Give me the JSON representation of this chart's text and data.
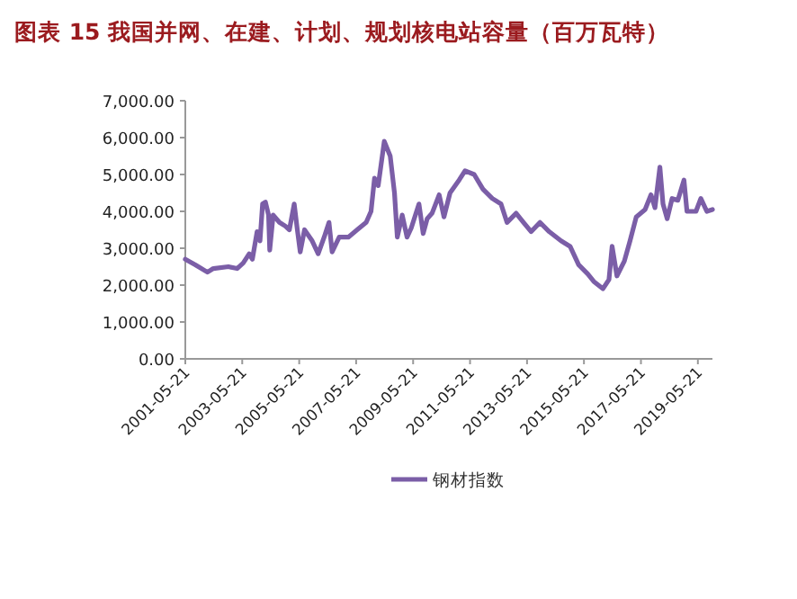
{
  "chart_data": {
    "type": "line",
    "title": "图表 15 我国并网、在建、计划、规划核电站容量（百万瓦特）",
    "x": [
      "2001-05-21",
      "2001-09-27",
      "2002-03-01",
      "2002-05-15",
      "2002-11-24",
      "2003-03-17",
      "2003-06-03",
      "2003-08-19",
      "2003-09-28",
      "2003-11-28",
      "2004-01-04",
      "2004-02-06",
      "2004-03-14",
      "2004-04-23",
      "2004-05-08",
      "2004-06-21",
      "2004-09-09",
      "2004-11-24",
      "2005-01-15",
      "2005-03-18",
      "2005-04-27",
      "2005-06-03",
      "2005-07-28",
      "2005-11-03",
      "2006-01-19",
      "2006-04-06",
      "2006-06-07",
      "2006-07-17",
      "2006-10-16",
      "2007-02-10",
      "2007-06-03",
      "2007-09-27",
      "2007-11-28",
      "2008-01-12",
      "2008-02-28",
      "2008-05-16",
      "2008-07-31",
      "2008-09-24",
      "2008-10-30",
      "2009-01-01",
      "2009-03-04",
      "2009-04-27",
      "2009-08-04",
      "2009-09-27",
      "2009-11-17",
      "2010-01-19",
      "2010-04-20",
      "2010-06-21",
      "2010-09-06",
      "2011-01-01",
      "2011-03-18",
      "2011-07-13",
      "2011-11-03",
      "2012-03-01",
      "2012-06-21",
      "2012-09-06",
      "2013-01-01",
      "2013-04-06",
      "2013-07-13",
      "2013-11-03",
      "2014-03-01",
      "2014-07-31",
      "2014-11-24",
      "2015-03-14",
      "2015-07-09",
      "2015-09-24",
      "2016-01-19",
      "2016-04-06",
      "2016-05-16",
      "2016-07-17",
      "2016-10-20",
      "2017-01-01",
      "2017-03-22",
      "2017-07-13",
      "2017-09-27",
      "2017-11-17",
      "2018-01-19",
      "2018-02-28",
      "2018-04-23",
      "2018-06-25",
      "2018-09-06",
      "2018-11-24",
      "2019-01-01",
      "2019-04-27",
      "2019-06-28",
      "2019-09-13",
      "2019-11-24"
    ],
    "series": [
      {
        "name": "钢材指数",
        "color": "#7b5ea7",
        "values": [
          2700,
          2550,
          2350,
          2450,
          2500,
          2450,
          2600,
          2850,
          2700,
          3450,
          3200,
          4200,
          4250,
          3900,
          2950,
          3900,
          3700,
          3600,
          3500,
          4200,
          3500,
          2900,
          3500,
          3200,
          2850,
          3300,
          3700,
          2900,
          3300,
          3300,
          3500,
          3700,
          4000,
          4900,
          4700,
          5900,
          5500,
          4500,
          3300,
          3900,
          3300,
          3550,
          4200,
          3400,
          3800,
          3950,
          4450,
          3850,
          4500,
          4850,
          5100,
          5000,
          4600,
          4350,
          4200,
          3700,
          3950,
          3700,
          3450,
          3700,
          3450,
          3200,
          3050,
          2550,
          2300,
          2100,
          1900,
          2150,
          3050,
          2250,
          2650,
          3200,
          3850,
          4050,
          4450,
          4100,
          5200,
          4200,
          3800,
          4350,
          4300,
          4850,
          4000,
          4000,
          4350,
          4000,
          4050
        ]
      }
    ],
    "xlim": [
      "2001-05-21",
      "2019-11-24"
    ],
    "xticks": [
      {
        "value": "2001-05-21",
        "label": "2001-05-21"
      },
      {
        "value": "2003-05-21",
        "label": "2003-05-21"
      },
      {
        "value": "2005-05-21",
        "label": "2005-05-21"
      },
      {
        "value": "2007-05-21",
        "label": "2007-05-21"
      },
      {
        "value": "2009-05-21",
        "label": "2009-05-21"
      },
      {
        "value": "2011-05-21",
        "label": "2011-05-21"
      },
      {
        "value": "2013-05-21",
        "label": "2013-05-21"
      },
      {
        "value": "2015-05-21",
        "label": "2015-05-21"
      },
      {
        "value": "2017-05-21",
        "label": "2017-05-21"
      },
      {
        "value": "2019-05-21",
        "label": "2019-05-21"
      }
    ],
    "ylim": [
      0,
      7000
    ],
    "yticks": [
      {
        "value": 0,
        "label": "0.00"
      },
      {
        "value": 1000,
        "label": "1,000.00"
      },
      {
        "value": 2000,
        "label": "2,000.00"
      },
      {
        "value": 3000,
        "label": "3,000.00"
      },
      {
        "value": 4000,
        "label": "4,000.00"
      },
      {
        "value": 5000,
        "label": "5,000.00"
      },
      {
        "value": 6000,
        "label": "6,000.00"
      },
      {
        "value": 7000,
        "label": "7,000.00"
      }
    ],
    "legend": "bottom"
  }
}
